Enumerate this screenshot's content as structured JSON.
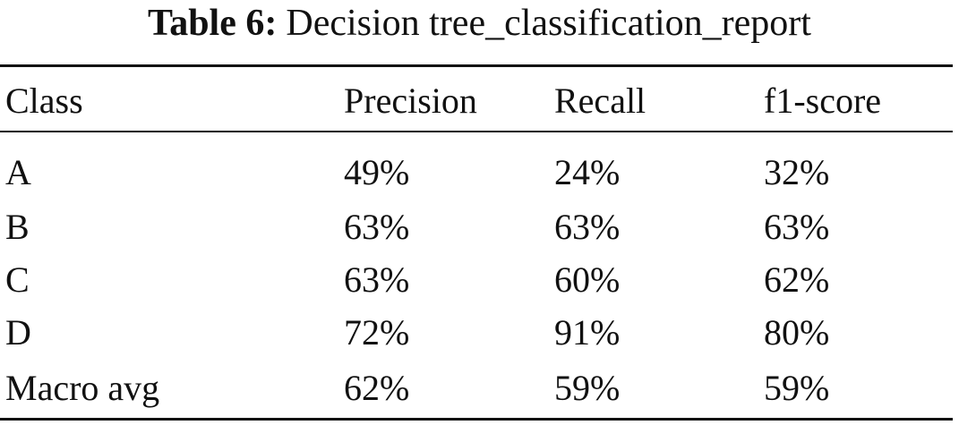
{
  "caption": {
    "label": "Table 6:",
    "title": "Decision tree_classification_report"
  },
  "table": {
    "headers": [
      "Class",
      "Precision",
      "Recall",
      "f1-score"
    ],
    "rows": [
      [
        "A",
        "49%",
        "24%",
        "32%"
      ],
      [
        "B",
        "63%",
        "63%",
        "63%"
      ],
      [
        "C",
        "63%",
        "60%",
        "62%"
      ],
      [
        "D",
        "72%",
        "91%",
        "80%"
      ],
      [
        "Macro avg",
        "62%",
        "59%",
        "59%"
      ]
    ]
  }
}
